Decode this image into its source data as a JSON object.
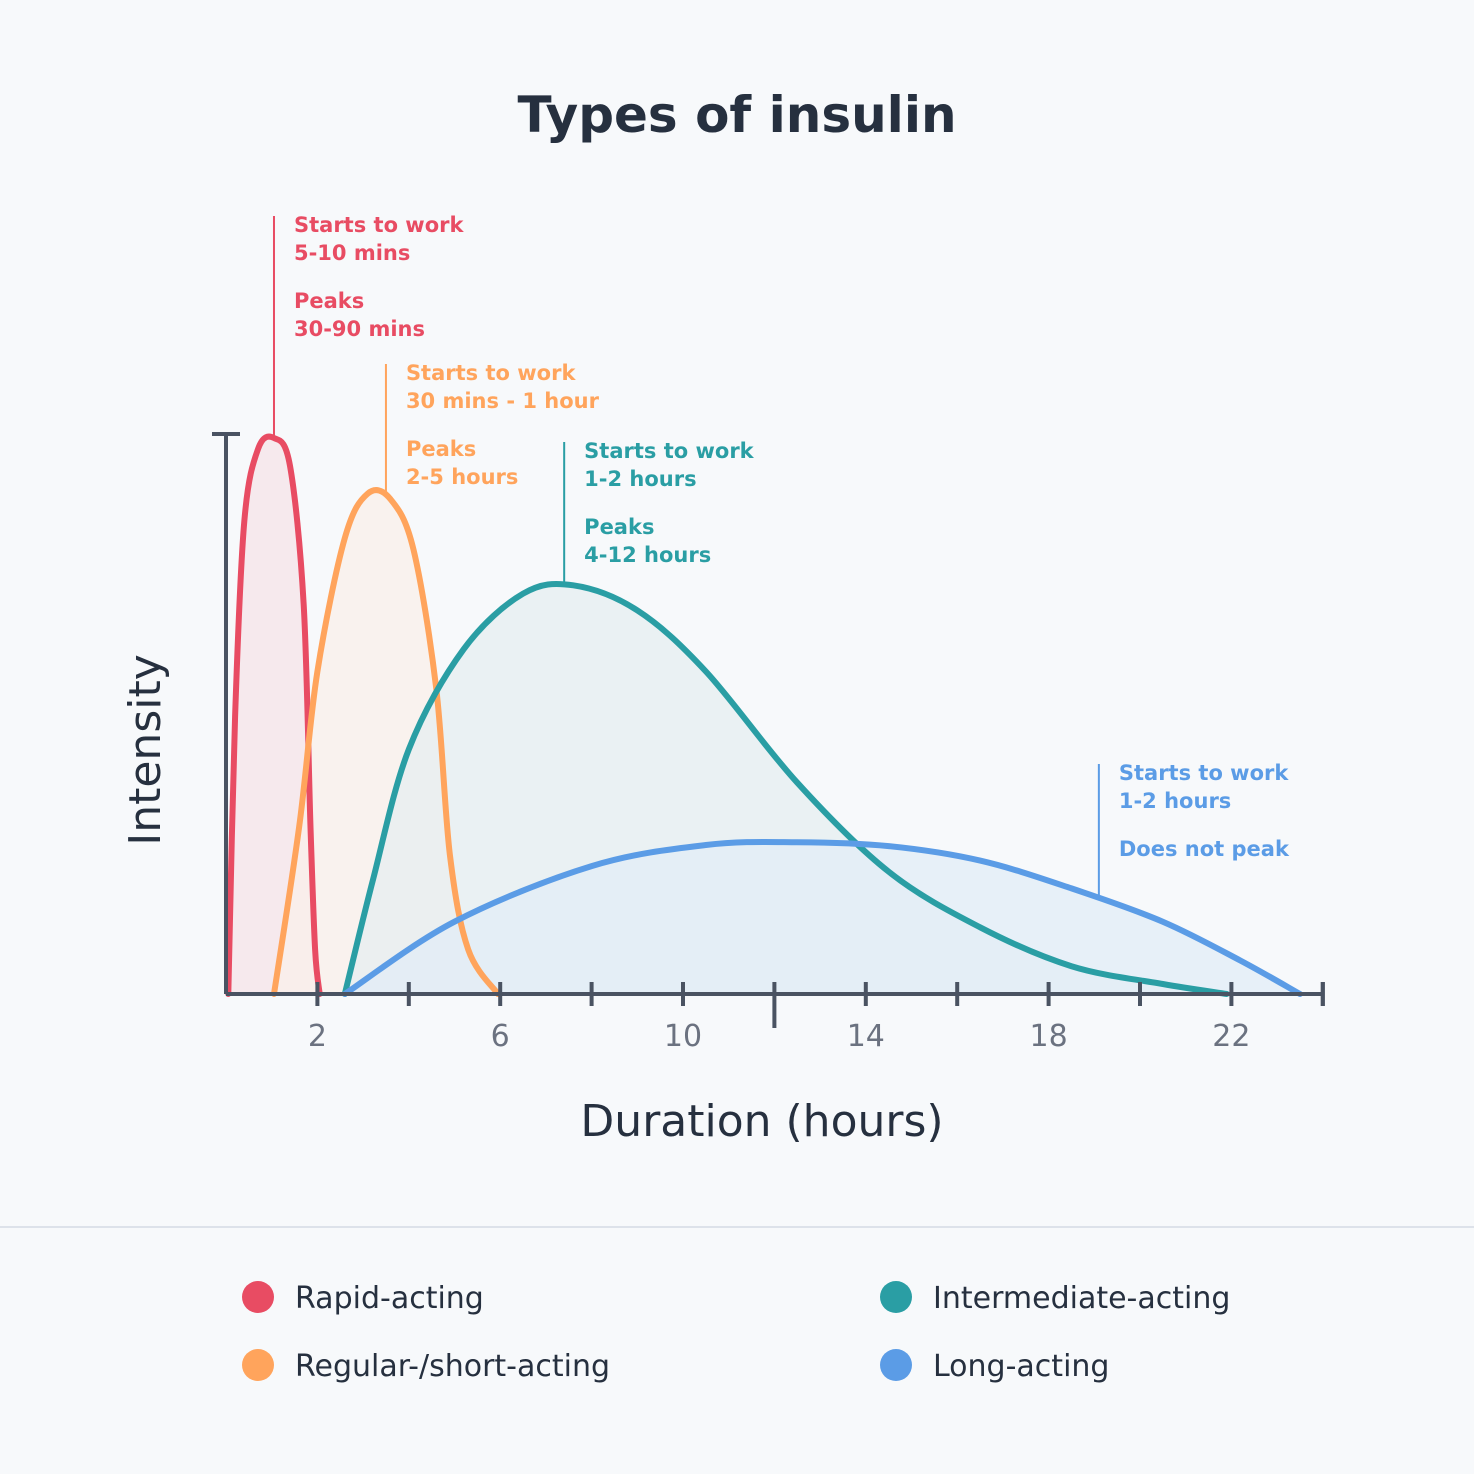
{
  "chart_data": {
    "type": "area",
    "title": "Types of insulin",
    "xlabel": "Duration (hours)",
    "ylabel": "Intensity",
    "xlim": [
      0,
      24
    ],
    "ylim": [
      0,
      1
    ],
    "xticks": [
      1,
      2,
      3,
      4,
      5,
      6,
      7,
      8,
      9,
      10,
      11,
      12,
      13,
      14,
      15,
      16,
      17,
      18,
      19,
      20,
      21,
      22,
      23,
      24
    ],
    "xtick_labels": [
      {
        "x": 2,
        "label": "2"
      },
      {
        "x": 6,
        "label": "6"
      },
      {
        "x": 10,
        "label": "10"
      },
      {
        "x": 14,
        "label": "14"
      },
      {
        "x": 18,
        "label": "18"
      },
      {
        "x": 22,
        "label": "22"
      }
    ],
    "grid": false,
    "legend_placement": "bottom",
    "series": [
      {
        "name": "Rapid-acting",
        "color": "#e84c63",
        "fill": "#f6e3e8",
        "points": [
          [
            0.05,
            0
          ],
          [
            0.2,
            0.5
          ],
          [
            0.4,
            0.85
          ],
          [
            0.7,
            0.98
          ],
          [
            1.05,
            1.0
          ],
          [
            1.4,
            0.95
          ],
          [
            1.7,
            0.7
          ],
          [
            1.85,
            0.3
          ],
          [
            1.95,
            0.08
          ],
          [
            2.05,
            0
          ]
        ]
      },
      {
        "name": "Regular-/short-acting",
        "color": "#ffa45c",
        "fill": "#faefe9",
        "points": [
          [
            1.05,
            0
          ],
          [
            1.6,
            0.3
          ],
          [
            2.0,
            0.58
          ],
          [
            2.6,
            0.82
          ],
          [
            3.1,
            0.9
          ],
          [
            3.6,
            0.89
          ],
          [
            4.1,
            0.8
          ],
          [
            4.6,
            0.55
          ],
          [
            4.9,
            0.25
          ],
          [
            5.3,
            0.08
          ],
          [
            5.95,
            0
          ]
        ]
      },
      {
        "name": "Intermediate-acting",
        "color": "#2a9ea4",
        "fill": "#e6eef0",
        "points": [
          [
            2.6,
            0
          ],
          [
            3.2,
            0.2
          ],
          [
            4.0,
            0.44
          ],
          [
            5.2,
            0.62
          ],
          [
            6.5,
            0.72
          ],
          [
            7.6,
            0.735
          ],
          [
            9.0,
            0.69
          ],
          [
            10.5,
            0.58
          ],
          [
            12.5,
            0.38
          ],
          [
            14.5,
            0.22
          ],
          [
            16.5,
            0.12
          ],
          [
            18.5,
            0.05
          ],
          [
            20.5,
            0.018
          ],
          [
            21.9,
            0
          ]
        ]
      },
      {
        "name": "Long-acting",
        "color": "#5b9ce6",
        "fill": "#e2ecf7",
        "points": [
          [
            2.6,
            0
          ],
          [
            5.0,
            0.13
          ],
          [
            8.0,
            0.23
          ],
          [
            10.5,
            0.268
          ],
          [
            12.5,
            0.273
          ],
          [
            14.5,
            0.266
          ],
          [
            16.5,
            0.24
          ],
          [
            18.5,
            0.19
          ],
          [
            20.5,
            0.13
          ],
          [
            22.2,
            0.06
          ],
          [
            23.5,
            0
          ]
        ]
      }
    ],
    "annotations": [
      {
        "series": "Rapid-acting",
        "x": 1.05,
        "lines": [
          "Starts to work",
          "5-10 mins",
          "",
          "Peaks",
          "30-90 mins"
        ]
      },
      {
        "series": "Regular-/short-acting",
        "x": 3.5,
        "lines": [
          "Starts to work",
          "30 mins - 1 hour",
          "",
          "Peaks",
          "2-5 hours"
        ]
      },
      {
        "series": "Intermediate-acting",
        "x": 7.4,
        "lines": [
          "Starts to work",
          "1-2 hours",
          "",
          "Peaks",
          "4-12 hours"
        ]
      },
      {
        "series": "Long-acting",
        "x": 19.1,
        "lines": [
          "Starts to work",
          "1-2 hours",
          "",
          "Does not peak"
        ]
      }
    ]
  },
  "legend": [
    {
      "label": "Rapid-acting",
      "color": "#e84c63"
    },
    {
      "label": "Intermediate-acting",
      "color": "#2a9ea4"
    },
    {
      "label": "Regular-/short-acting",
      "color": "#ffa45c"
    },
    {
      "label": "Long-acting",
      "color": "#5b9ce6"
    }
  ],
  "colors": {
    "axis": "#4a5362",
    "divider": "#dde2ea",
    "background": "#f7f9fb"
  }
}
